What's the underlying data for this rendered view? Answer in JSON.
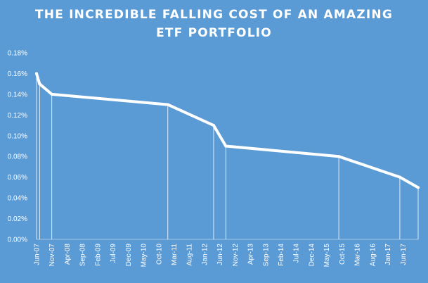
{
  "chart_data": {
    "type": "line",
    "title_lines": [
      "THE INCREDIBLE  FALLING  COST OF AN AMAZING",
      "ETF PORTFOLIO"
    ],
    "xlabel": "",
    "ylabel": "",
    "ylim": [
      0,
      0.18
    ],
    "y_ticks": [
      "0.00%",
      "0.02%",
      "0.04%",
      "0.06%",
      "0.08%",
      "0.10%",
      "0.12%",
      "0.14%",
      "0.16%",
      "0.18%"
    ],
    "x_ticks": [
      "Jun-07",
      "Nov-07",
      "Apr-08",
      "Sep-08",
      "Feb-09",
      "Jul-09",
      "Dec-09",
      "May-10",
      "Oct-10",
      "Mar-11",
      "Aug-11",
      "Jan-12",
      "Jun-12",
      "Nov-12",
      "Apr-13",
      "Sep-13",
      "Feb-14",
      "Jul-14",
      "Dec-14",
      "May-15",
      "Oct-15",
      "Mar-16",
      "Aug-16",
      "Jan-17",
      "Jun-17"
    ],
    "x_start": "2007-06",
    "x_end": "2017-11",
    "series": [
      {
        "x": [
          "2007-06",
          "2007-07",
          "2007-11",
          "2011-01",
          "2012-04",
          "2012-08",
          "2015-09",
          "2017-05",
          "2017-11"
        ],
        "values": [
          0.16,
          0.15,
          0.14,
          0.13,
          0.11,
          0.09,
          0.08,
          0.06,
          0.05
        ]
      }
    ],
    "grid": false,
    "drop_lines": true,
    "colors": {
      "background": "#5b9bd5",
      "line": "#ffffff",
      "text": "#ffffff"
    }
  }
}
